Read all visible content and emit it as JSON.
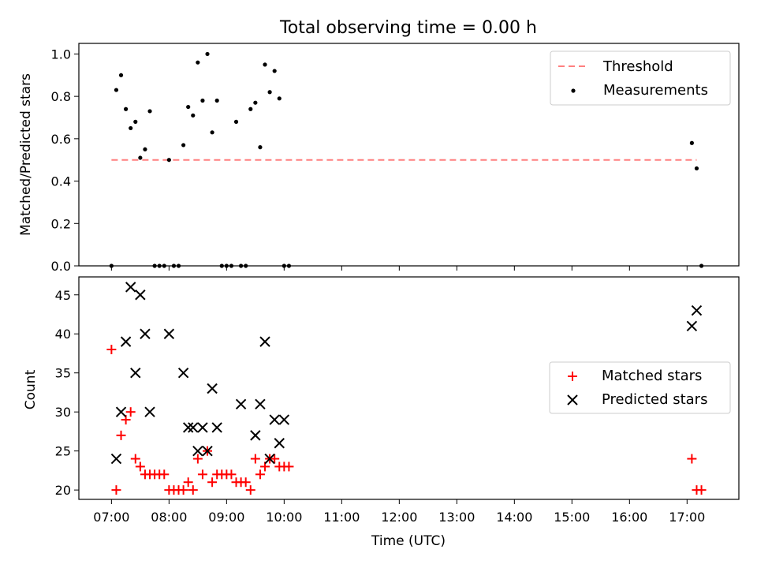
{
  "title": "Total observing time = 0.00 h",
  "colors": {
    "threshold": "#ff7f7f",
    "measurement": "#000000",
    "matched": "#ff0000",
    "predicted": "#000000"
  },
  "chart_data": [
    {
      "type": "scatter",
      "ylabel": "Matched/Predicted stars",
      "ylim": [
        0,
        1.05
      ],
      "yticks": [
        "0.0",
        "0.2",
        "0.4",
        "0.6",
        "0.8",
        "1.0"
      ],
      "ytick_values": [
        0,
        0.2,
        0.4,
        0.6,
        0.8,
        1.0
      ],
      "legend": {
        "placement": "upper right",
        "threshold_label": "Threshold",
        "measurement_label": "Measurements"
      },
      "threshold": {
        "x": [
          "07:00",
          "17:10"
        ],
        "y": 0.5
      },
      "series": [
        {
          "name": "Measurements",
          "points": [
            [
              "07:00",
              0.0
            ],
            [
              "07:05",
              0.83
            ],
            [
              "07:10",
              0.9
            ],
            [
              "07:15",
              0.74
            ],
            [
              "07:20",
              0.65
            ],
            [
              "07:25",
              0.68
            ],
            [
              "07:30",
              0.51
            ],
            [
              "07:35",
              0.55
            ],
            [
              "07:40",
              0.73
            ],
            [
              "07:45",
              0.0
            ],
            [
              "07:50",
              0.0
            ],
            [
              "07:55",
              0.0
            ],
            [
              "08:00",
              0.5
            ],
            [
              "08:05",
              0.0
            ],
            [
              "08:10",
              0.0
            ],
            [
              "08:15",
              0.57
            ],
            [
              "08:20",
              0.75
            ],
            [
              "08:25",
              0.71
            ],
            [
              "08:30",
              0.96
            ],
            [
              "08:35",
              0.78
            ],
            [
              "08:40",
              1.0
            ],
            [
              "08:45",
              0.63
            ],
            [
              "08:50",
              0.78
            ],
            [
              "08:55",
              0.0
            ],
            [
              "09:00",
              0.0
            ],
            [
              "09:05",
              0.0
            ],
            [
              "09:10",
              0.68
            ],
            [
              "09:15",
              0.0
            ],
            [
              "09:20",
              0.0
            ],
            [
              "09:25",
              0.74
            ],
            [
              "09:30",
              0.77
            ],
            [
              "09:35",
              0.56
            ],
            [
              "09:40",
              0.95
            ],
            [
              "09:45",
              0.82
            ],
            [
              "09:50",
              0.92
            ],
            [
              "09:55",
              0.79
            ],
            [
              "10:00",
              0.0
            ],
            [
              "10:05",
              0.0
            ],
            [
              "17:05",
              0.58
            ],
            [
              "17:10",
              0.46
            ],
            [
              "17:15",
              0.0
            ]
          ]
        }
      ]
    },
    {
      "type": "scatter",
      "xlabel": "Time (UTC)",
      "ylabel": "Count",
      "ylim": [
        18.8,
        47.3
      ],
      "yticks": [
        "20",
        "25",
        "30",
        "35",
        "40",
        "45"
      ],
      "ytick_values": [
        20,
        25,
        30,
        35,
        40,
        45
      ],
      "xticks": [
        "07:00",
        "08:00",
        "09:00",
        "10:00",
        "11:00",
        "12:00",
        "13:00",
        "14:00",
        "15:00",
        "16:00",
        "17:00"
      ],
      "xlim": [
        "06:26",
        "17:54"
      ],
      "legend": {
        "placement": "center right",
        "matched_label": "Matched stars",
        "predicted_label": "Predicted stars"
      },
      "series": [
        {
          "name": "Matched stars",
          "points": [
            [
              "07:00",
              38
            ],
            [
              "07:05",
              20
            ],
            [
              "07:10",
              27
            ],
            [
              "07:15",
              29
            ],
            [
              "07:20",
              30
            ],
            [
              "07:25",
              24
            ],
            [
              "07:30",
              23
            ],
            [
              "07:35",
              22
            ],
            [
              "07:40",
              22
            ],
            [
              "07:45",
              22
            ],
            [
              "07:50",
              22
            ],
            [
              "07:55",
              22
            ],
            [
              "08:00",
              20
            ],
            [
              "08:05",
              20
            ],
            [
              "08:10",
              20
            ],
            [
              "08:15",
              20
            ],
            [
              "08:20",
              21
            ],
            [
              "08:25",
              20
            ],
            [
              "08:30",
              24
            ],
            [
              "08:35",
              22
            ],
            [
              "08:40",
              25
            ],
            [
              "08:45",
              21
            ],
            [
              "08:50",
              22
            ],
            [
              "08:55",
              22
            ],
            [
              "09:00",
              22
            ],
            [
              "09:05",
              22
            ],
            [
              "09:10",
              21
            ],
            [
              "09:15",
              21
            ],
            [
              "09:20",
              21
            ],
            [
              "09:25",
              20
            ],
            [
              "09:30",
              24
            ],
            [
              "09:35",
              22
            ],
            [
              "09:40",
              23
            ],
            [
              "09:45",
              24
            ],
            [
              "09:50",
              24
            ],
            [
              "09:55",
              23
            ],
            [
              "10:00",
              23
            ],
            [
              "10:05",
              23
            ],
            [
              "17:05",
              24
            ],
            [
              "17:10",
              20
            ],
            [
              "17:15",
              20
            ]
          ]
        },
        {
          "name": "Predicted stars",
          "points": [
            [
              "07:05",
              24
            ],
            [
              "07:10",
              30
            ],
            [
              "07:15",
              39
            ],
            [
              "07:20",
              46
            ],
            [
              "07:25",
              35
            ],
            [
              "07:30",
              45
            ],
            [
              "07:35",
              40
            ],
            [
              "07:40",
              30
            ],
            [
              "08:00",
              40
            ],
            [
              "08:15",
              35
            ],
            [
              "08:20",
              28
            ],
            [
              "08:25",
              28
            ],
            [
              "08:30",
              25
            ],
            [
              "08:35",
              28
            ],
            [
              "08:40",
              25
            ],
            [
              "08:45",
              33
            ],
            [
              "08:50",
              28
            ],
            [
              "09:15",
              31
            ],
            [
              "09:30",
              27
            ],
            [
              "09:35",
              31
            ],
            [
              "09:40",
              39
            ],
            [
              "09:45",
              24
            ],
            [
              "09:50",
              29
            ],
            [
              "09:55",
              26
            ],
            [
              "10:00",
              29
            ],
            [
              "17:05",
              41
            ],
            [
              "17:10",
              43
            ]
          ]
        }
      ]
    }
  ]
}
